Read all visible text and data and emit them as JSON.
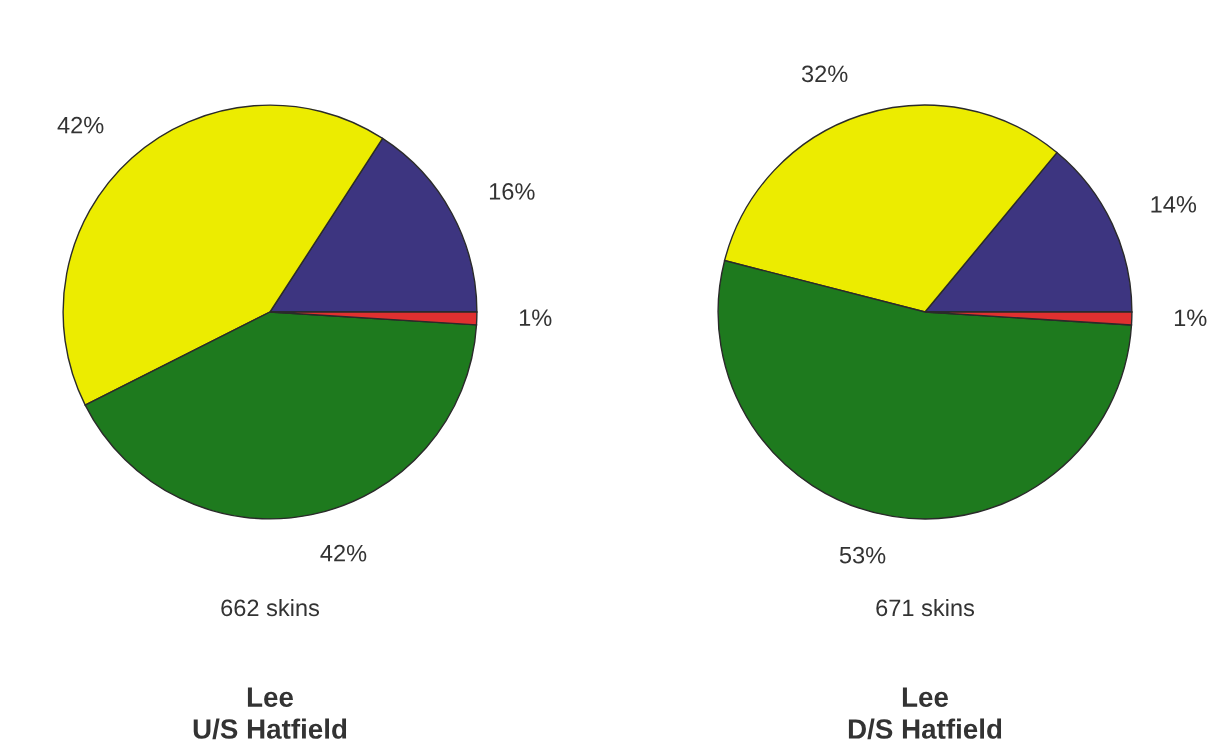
{
  "chart_data": [
    {
      "type": "pie",
      "title": "Lee\nU/S Hatfield",
      "annotations": [
        "662 skins"
      ],
      "categories": [
        null,
        null,
        null,
        null
      ],
      "values": [
        16,
        42,
        42,
        1
      ],
      "value_labels": [
        "16%",
        "42%",
        "42%",
        "1%"
      ],
      "colors": [
        "#3d3580",
        "#ecec00",
        "#1e7a1e",
        "#e03030"
      ],
      "legend": false
    },
    {
      "type": "pie",
      "title": "Lee\nD/S Hatfield",
      "annotations": [
        "671 skins"
      ],
      "categories": [
        null,
        null,
        null,
        null
      ],
      "values": [
        14,
        32,
        53,
        1
      ],
      "value_labels": [
        "14%",
        "32%",
        "53%",
        "1%"
      ],
      "colors": [
        "#3d3580",
        "#ecec00",
        "#1e7a1e",
        "#e03030"
      ],
      "legend": false
    }
  ]
}
